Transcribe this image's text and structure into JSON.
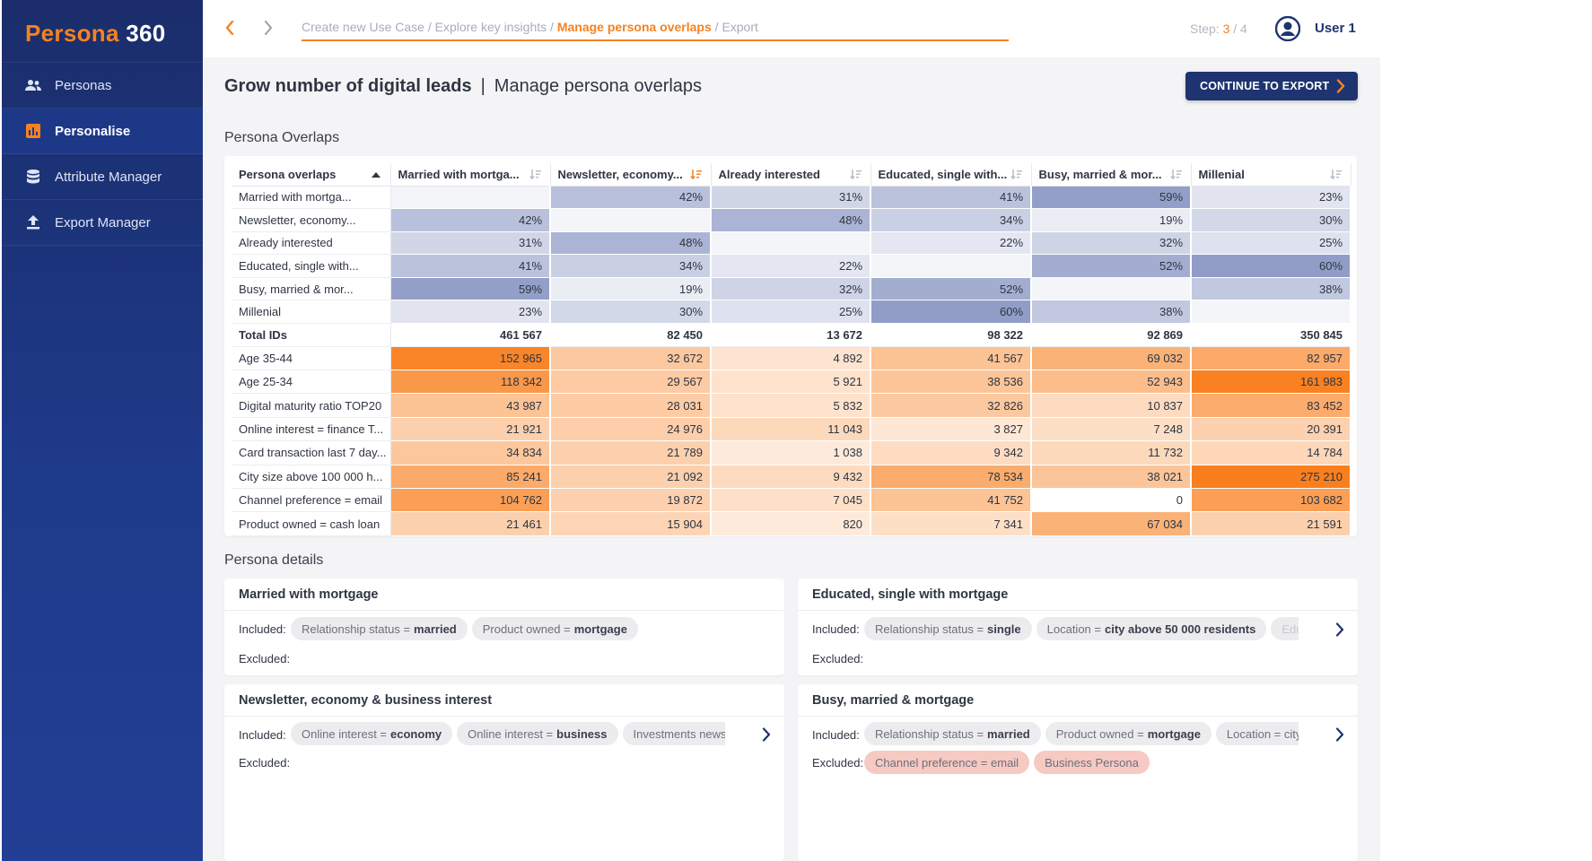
{
  "app": {
    "logo_part1": "Persona",
    "logo_part2": "360"
  },
  "sidebar": {
    "items": [
      {
        "label": "Personas",
        "icon": "users-icon",
        "active": false
      },
      {
        "label": "Personalise",
        "icon": "bar-chart-icon",
        "active": true
      },
      {
        "label": "Attribute Manager",
        "icon": "database-icon",
        "active": false
      },
      {
        "label": "Export Manager",
        "icon": "upload-icon",
        "active": false
      }
    ]
  },
  "header": {
    "breadcrumb": [
      {
        "label": "Create new Use Case",
        "current": false
      },
      {
        "label": "Explore key insights",
        "current": false
      },
      {
        "label": "Manage persona overlaps",
        "current": true
      },
      {
        "label": "Export",
        "current": false
      }
    ],
    "breadcrumb_separator": " / ",
    "step_label": "Step:",
    "step_current": "3",
    "step_total": "/ 4",
    "user": "User 1"
  },
  "page": {
    "title_bold": "Grow number of digital leads",
    "title_sep": "|",
    "title_rest": "Manage persona overlaps",
    "continue_button": "CONTINUE TO EXPORT"
  },
  "overlaps": {
    "section_title": "Persona Overlaps",
    "corner_header": "Persona overlaps",
    "columns": [
      {
        "label": "Married with mortga...",
        "sort_active": false
      },
      {
        "label": "Newsletter, economy...",
        "sort_active": true
      },
      {
        "label": "Already interested",
        "sort_active": false
      },
      {
        "label": "Educated, single with...",
        "sort_active": false
      },
      {
        "label": "Busy, married & mor...",
        "sort_active": false
      },
      {
        "label": "Millenial",
        "sort_active": false
      }
    ],
    "overlap_rows": [
      {
        "label": "Married with mortga...",
        "values": [
          null,
          42,
          31,
          41,
          59,
          23
        ]
      },
      {
        "label": "Newsletter, economy...",
        "values": [
          42,
          null,
          48,
          34,
          19,
          30
        ]
      },
      {
        "label": "Already interested",
        "values": [
          31,
          48,
          null,
          22,
          32,
          25
        ]
      },
      {
        "label": "Educated, single with...",
        "values": [
          41,
          34,
          22,
          null,
          52,
          60
        ]
      },
      {
        "label": "Busy, married & mor...",
        "values": [
          59,
          19,
          32,
          52,
          null,
          38
        ]
      },
      {
        "label": "Millenial",
        "values": [
          23,
          30,
          25,
          60,
          38,
          null
        ]
      }
    ],
    "total_row": {
      "label": "Total IDs",
      "values": [
        "461 567",
        "82 450",
        "13 672",
        "98 322",
        "92 869",
        "350 845"
      ]
    },
    "attribute_rows": [
      {
        "label": "Age 35-44",
        "values": [
          "152 965",
          "32 672",
          "4 892",
          "41 567",
          "69 032",
          "82 957"
        ],
        "intensity": [
          0.95,
          0.35,
          0.1,
          0.4,
          0.55,
          0.62
        ]
      },
      {
        "label": "Age 25-34",
        "values": [
          "118 342",
          "29 567",
          "5 921",
          "38 536",
          "52 943",
          "161 983"
        ],
        "intensity": [
          0.78,
          0.33,
          0.12,
          0.38,
          0.45,
          0.98
        ]
      },
      {
        "label": "Digital maturity ratio TOP20",
        "values": [
          "43 987",
          "28 031",
          "5 832",
          "32 826",
          "10 837",
          "83 452"
        ],
        "intensity": [
          0.4,
          0.32,
          0.12,
          0.35,
          0.18,
          0.6
        ]
      },
      {
        "label": "Online interest = finance T...",
        "values": [
          "21 921",
          "24 976",
          "11 043",
          "3 827",
          "7 248",
          "20 391"
        ],
        "intensity": [
          0.28,
          0.3,
          0.2,
          0.08,
          0.15,
          0.27
        ]
      },
      {
        "label": "Card transaction last 7 day...",
        "values": [
          "34 834",
          "21 789",
          "1 038",
          "9 342",
          "11 732",
          "14 784"
        ],
        "intensity": [
          0.36,
          0.28,
          0.05,
          0.17,
          0.2,
          0.22
        ]
      },
      {
        "label": "City size above 100 000 h...",
        "values": [
          "85 241",
          "21 092",
          "9 432",
          "78 534",
          "38 021",
          "275 210"
        ],
        "intensity": [
          0.62,
          0.28,
          0.18,
          0.6,
          0.38,
          1.0
        ]
      },
      {
        "label": "Channel preference = email",
        "values": [
          "104 762",
          "19 872",
          "7 045",
          "41 752",
          "0",
          "103 682"
        ],
        "intensity": [
          0.72,
          0.27,
          0.14,
          0.4,
          0.0,
          0.72
        ]
      },
      {
        "label": "Product owned = cash loan",
        "values": [
          "21 461",
          "15 904",
          "820",
          "7 341",
          "67 034",
          "21 591"
        ],
        "intensity": [
          0.28,
          0.24,
          0.05,
          0.15,
          0.55,
          0.28
        ]
      }
    ]
  },
  "details": {
    "section_title": "Persona details",
    "included_label": "Included:",
    "excluded_label": "Excluded:",
    "cards": [
      {
        "title": "Married with mortgage",
        "included": [
          {
            "key": "Relationship status =",
            "value": "married"
          },
          {
            "key": "Product owned =",
            "value": "mortgage"
          }
        ],
        "excluded": [],
        "has_more": false
      },
      {
        "title": "Educated, single with mortgage",
        "included": [
          {
            "key": "Relationship status =",
            "value": "single"
          },
          {
            "key": "Location  =",
            "value": "city above 50 000 residents"
          },
          {
            "key": "Edu",
            "value": ""
          }
        ],
        "excluded": [],
        "has_more": true
      },
      {
        "title": "Newsletter, economy & business interest",
        "included": [
          {
            "key": "Online interest =",
            "value": "economy"
          },
          {
            "key": "Online interest =",
            "value": "business"
          },
          {
            "key": "Investments newsle",
            "value": ""
          }
        ],
        "excluded": [],
        "has_more": true
      },
      {
        "title": "Busy, married & mortgage",
        "included": [
          {
            "key": "Relationship status =",
            "value": "married"
          },
          {
            "key": "Product owned =",
            "value": "mortgage"
          },
          {
            "key": "Location  = city",
            "value": ""
          }
        ],
        "excluded": [
          {
            "key": "Channel preference = email",
            "value": ""
          },
          {
            "key": "Business Persona",
            "value": ""
          }
        ],
        "has_more": true
      }
    ]
  },
  "colors": {
    "accent": "#f58220",
    "navy": "#1e3470",
    "sidebar": "#1e3a8a",
    "overlap_base": "#8f9bc6",
    "attr_base": "#f97f1e"
  }
}
